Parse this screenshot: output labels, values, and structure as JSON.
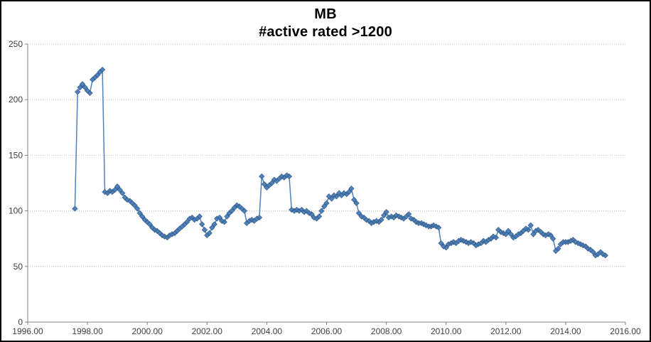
{
  "chart_data": {
    "type": "line",
    "title": "MB",
    "subtitle": "#active rated >1200",
    "xlabel": "",
    "ylabel": "",
    "xlim": [
      1996,
      2016
    ],
    "ylim": [
      0,
      250
    ],
    "x_ticks": [
      "1996.00",
      "1998.00",
      "2000.00",
      "2002.00",
      "2004.00",
      "2006.00",
      "2008.00",
      "2010.00",
      "2012.00",
      "2014.00",
      "2016.00"
    ],
    "x_tick_values": [
      1996,
      1998,
      2000,
      2002,
      2004,
      2006,
      2008,
      2010,
      2012,
      2014,
      2016
    ],
    "y_ticks": [
      "0",
      "50",
      "100",
      "150",
      "200",
      "250"
    ],
    "y_tick_values": [
      0,
      50,
      100,
      150,
      200,
      250
    ],
    "grid": "horizontal-dotted",
    "legend": "none",
    "colors": {
      "series_line": "#4F81BD",
      "marker_fill": "#4F81BD",
      "marker_border": "#38618C",
      "gridline": "#bfbfbf",
      "axis": "#808080",
      "tick_label": "#404040",
      "title": "#000000"
    },
    "series": [
      {
        "name": "#active rated >1200",
        "marker": "diamond",
        "points": [
          [
            1997.58,
            102
          ],
          [
            1997.67,
            207
          ],
          [
            1997.75,
            211
          ],
          [
            1997.83,
            214
          ],
          [
            1997.92,
            211
          ],
          [
            1998.0,
            208
          ],
          [
            1998.08,
            206
          ],
          [
            1998.17,
            218
          ],
          [
            1998.25,
            220
          ],
          [
            1998.33,
            222
          ],
          [
            1998.42,
            225
          ],
          [
            1998.5,
            227
          ],
          [
            1998.58,
            117
          ],
          [
            1998.67,
            116
          ],
          [
            1998.75,
            118
          ],
          [
            1998.83,
            117
          ],
          [
            1998.92,
            119
          ],
          [
            1999.0,
            122
          ],
          [
            1999.08,
            119
          ],
          [
            1999.17,
            116
          ],
          [
            1999.25,
            112
          ],
          [
            1999.33,
            110
          ],
          [
            1999.42,
            109
          ],
          [
            1999.5,
            107
          ],
          [
            1999.58,
            105
          ],
          [
            1999.67,
            102
          ],
          [
            1999.75,
            98
          ],
          [
            1999.83,
            95
          ],
          [
            1999.92,
            92
          ],
          [
            2000.0,
            90
          ],
          [
            2000.08,
            88
          ],
          [
            2000.17,
            85
          ],
          [
            2000.25,
            83
          ],
          [
            2000.33,
            82
          ],
          [
            2000.42,
            80
          ],
          [
            2000.5,
            78
          ],
          [
            2000.58,
            77
          ],
          [
            2000.67,
            76
          ],
          [
            2000.75,
            78
          ],
          [
            2000.83,
            79
          ],
          [
            2000.92,
            80
          ],
          [
            2001.0,
            82
          ],
          [
            2001.08,
            84
          ],
          [
            2001.17,
            86
          ],
          [
            2001.25,
            88
          ],
          [
            2001.33,
            90
          ],
          [
            2001.42,
            93
          ],
          [
            2001.5,
            94
          ],
          [
            2001.58,
            92
          ],
          [
            2001.67,
            93
          ],
          [
            2001.75,
            95
          ],
          [
            2001.83,
            88
          ],
          [
            2001.92,
            83
          ],
          [
            2002.0,
            78
          ],
          [
            2002.08,
            80
          ],
          [
            2002.17,
            85
          ],
          [
            2002.25,
            88
          ],
          [
            2002.33,
            93
          ],
          [
            2002.42,
            94
          ],
          [
            2002.5,
            91
          ],
          [
            2002.58,
            90
          ],
          [
            2002.67,
            95
          ],
          [
            2002.75,
            98
          ],
          [
            2002.83,
            100
          ],
          [
            2002.92,
            103
          ],
          [
            2003.0,
            105
          ],
          [
            2003.08,
            104
          ],
          [
            2003.17,
            102
          ],
          [
            2003.25,
            100
          ],
          [
            2003.33,
            89
          ],
          [
            2003.42,
            91
          ],
          [
            2003.5,
            92
          ],
          [
            2003.58,
            91
          ],
          [
            2003.67,
            93
          ],
          [
            2003.75,
            94
          ],
          [
            2003.83,
            131
          ],
          [
            2003.92,
            124
          ],
          [
            2004.0,
            121
          ],
          [
            2004.08,
            123
          ],
          [
            2004.17,
            125
          ],
          [
            2004.25,
            128
          ],
          [
            2004.33,
            127
          ],
          [
            2004.42,
            129
          ],
          [
            2004.5,
            131
          ],
          [
            2004.58,
            130
          ],
          [
            2004.67,
            132
          ],
          [
            2004.75,
            131
          ],
          [
            2004.83,
            101
          ],
          [
            2004.92,
            100
          ],
          [
            2005.0,
            101
          ],
          [
            2005.08,
            100
          ],
          [
            2005.17,
            101
          ],
          [
            2005.25,
            99
          ],
          [
            2005.33,
            100
          ],
          [
            2005.42,
            98
          ],
          [
            2005.5,
            97
          ],
          [
            2005.58,
            94
          ],
          [
            2005.67,
            93
          ],
          [
            2005.75,
            95
          ],
          [
            2005.83,
            100
          ],
          [
            2005.92,
            104
          ],
          [
            2006.0,
            107
          ],
          [
            2006.08,
            113
          ],
          [
            2006.17,
            111
          ],
          [
            2006.25,
            114
          ],
          [
            2006.33,
            113
          ],
          [
            2006.42,
            116
          ],
          [
            2006.5,
            114
          ],
          [
            2006.58,
            116
          ],
          [
            2006.67,
            115
          ],
          [
            2006.75,
            117
          ],
          [
            2006.83,
            120
          ],
          [
            2006.92,
            110
          ],
          [
            2007.0,
            107
          ],
          [
            2007.08,
            98
          ],
          [
            2007.17,
            95
          ],
          [
            2007.25,
            94
          ],
          [
            2007.33,
            92
          ],
          [
            2007.42,
            91
          ],
          [
            2007.5,
            89
          ],
          [
            2007.58,
            90
          ],
          [
            2007.67,
            91
          ],
          [
            2007.75,
            90
          ],
          [
            2007.83,
            92
          ],
          [
            2007.92,
            96
          ],
          [
            2008.0,
            99
          ],
          [
            2008.08,
            94
          ],
          [
            2008.17,
            95
          ],
          [
            2008.25,
            94
          ],
          [
            2008.33,
            96
          ],
          [
            2008.42,
            95
          ],
          [
            2008.5,
            94
          ],
          [
            2008.58,
            93
          ],
          [
            2008.67,
            95
          ],
          [
            2008.75,
            97
          ],
          [
            2008.83,
            93
          ],
          [
            2008.92,
            92
          ],
          [
            2009.0,
            90
          ],
          [
            2009.08,
            89
          ],
          [
            2009.17,
            89
          ],
          [
            2009.25,
            88
          ],
          [
            2009.33,
            87
          ],
          [
            2009.42,
            86
          ],
          [
            2009.5,
            86
          ],
          [
            2009.58,
            87
          ],
          [
            2009.67,
            86
          ],
          [
            2009.75,
            85
          ],
          [
            2009.83,
            71
          ],
          [
            2009.92,
            68
          ],
          [
            2010.0,
            67
          ],
          [
            2010.08,
            70
          ],
          [
            2010.17,
            71
          ],
          [
            2010.25,
            72
          ],
          [
            2010.33,
            71
          ],
          [
            2010.42,
            73
          ],
          [
            2010.5,
            74
          ],
          [
            2010.58,
            73
          ],
          [
            2010.67,
            72
          ],
          [
            2010.75,
            71
          ],
          [
            2010.83,
            72
          ],
          [
            2010.92,
            71
          ],
          [
            2011.0,
            69
          ],
          [
            2011.08,
            70
          ],
          [
            2011.17,
            71
          ],
          [
            2011.25,
            73
          ],
          [
            2011.33,
            72
          ],
          [
            2011.42,
            74
          ],
          [
            2011.5,
            75
          ],
          [
            2011.58,
            77
          ],
          [
            2011.67,
            76
          ],
          [
            2011.75,
            83
          ],
          [
            2011.83,
            81
          ],
          [
            2011.92,
            80
          ],
          [
            2012.0,
            79
          ],
          [
            2012.08,
            82
          ],
          [
            2012.17,
            79
          ],
          [
            2012.25,
            76
          ],
          [
            2012.33,
            77
          ],
          [
            2012.42,
            79
          ],
          [
            2012.5,
            80
          ],
          [
            2012.58,
            82
          ],
          [
            2012.67,
            84
          ],
          [
            2012.75,
            83
          ],
          [
            2012.83,
            87
          ],
          [
            2012.92,
            79
          ],
          [
            2013.0,
            82
          ],
          [
            2013.08,
            83
          ],
          [
            2013.17,
            81
          ],
          [
            2013.25,
            79
          ],
          [
            2013.33,
            78
          ],
          [
            2013.42,
            79
          ],
          [
            2013.5,
            78
          ],
          [
            2013.58,
            75
          ],
          [
            2013.67,
            64
          ],
          [
            2013.75,
            66
          ],
          [
            2013.83,
            70
          ],
          [
            2013.92,
            72
          ],
          [
            2014.0,
            72
          ],
          [
            2014.08,
            72
          ],
          [
            2014.17,
            73
          ],
          [
            2014.25,
            74
          ],
          [
            2014.33,
            72
          ],
          [
            2014.42,
            71
          ],
          [
            2014.5,
            70
          ],
          [
            2014.58,
            69
          ],
          [
            2014.67,
            68
          ],
          [
            2014.75,
            66
          ],
          [
            2014.83,
            65
          ],
          [
            2014.92,
            63
          ],
          [
            2015.0,
            60
          ],
          [
            2015.08,
            61
          ],
          [
            2015.17,
            63
          ],
          [
            2015.25,
            61
          ],
          [
            2015.33,
            60
          ]
        ]
      }
    ]
  }
}
